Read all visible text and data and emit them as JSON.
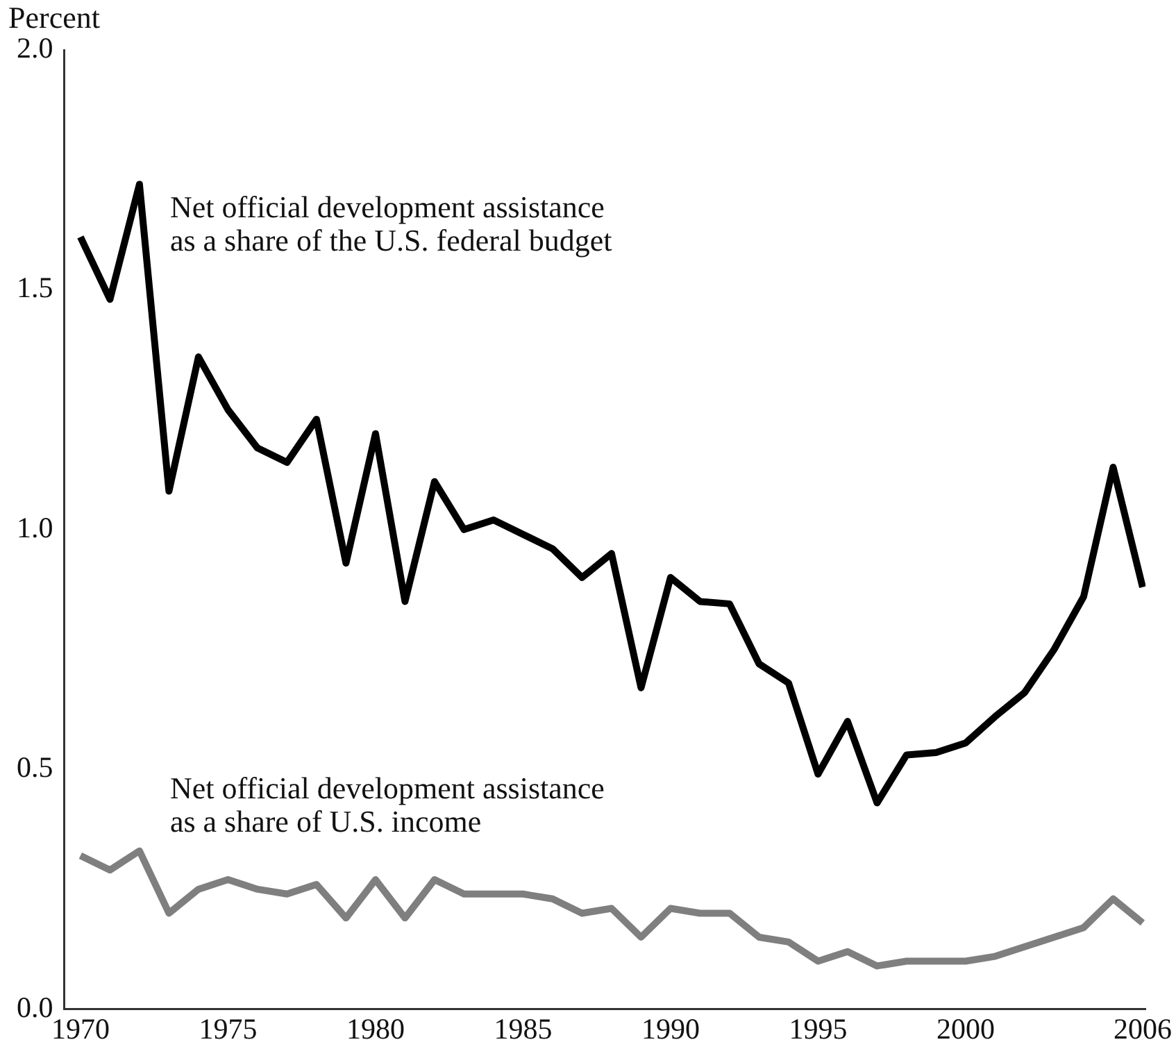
{
  "chart_data": {
    "type": "line",
    "ylabel": "Percent",
    "x": [
      1970,
      1971,
      1972,
      1973,
      1974,
      1975,
      1976,
      1977,
      1978,
      1979,
      1980,
      1981,
      1982,
      1983,
      1984,
      1985,
      1986,
      1987,
      1988,
      1989,
      1990,
      1991,
      1992,
      1993,
      1994,
      1995,
      1996,
      1997,
      1998,
      1999,
      2000,
      2001,
      2002,
      2003,
      2004,
      2005,
      2006
    ],
    "series": [
      {
        "name": "Net official development assistance\nas a share of the U.S. federal budget",
        "color": "#000000",
        "values": [
          1.61,
          1.48,
          1.72,
          1.08,
          1.36,
          1.25,
          1.17,
          1.14,
          1.23,
          0.93,
          1.2,
          0.85,
          1.1,
          1.0,
          1.02,
          0.99,
          0.96,
          0.9,
          0.95,
          0.67,
          0.9,
          0.85,
          0.845,
          0.72,
          0.68,
          0.49,
          0.6,
          0.43,
          0.53,
          0.535,
          0.555,
          0.61,
          0.66,
          0.75,
          0.86,
          1.13,
          0.88
        ]
      },
      {
        "name": "Net official development assistance\nas a share of U.S. income",
        "color": "#7f7f7f",
        "values": [
          0.32,
          0.29,
          0.33,
          0.2,
          0.25,
          0.27,
          0.25,
          0.24,
          0.26,
          0.19,
          0.27,
          0.19,
          0.27,
          0.24,
          0.24,
          0.24,
          0.23,
          0.2,
          0.21,
          0.15,
          0.21,
          0.2,
          0.2,
          0.15,
          0.14,
          0.1,
          0.12,
          0.09,
          0.1,
          0.1,
          0.1,
          0.11,
          0.13,
          0.15,
          0.17,
          0.23,
          0.18
        ]
      }
    ],
    "xlim": [
      1969.45,
      2006.1
    ],
    "xticks": [
      1970,
      1975,
      1980,
      1985,
      1990,
      1995,
      2000,
      2006
    ],
    "ylim": [
      0,
      2
    ],
    "yticks": [
      {
        "value": 0,
        "label": "0.0"
      },
      {
        "value": 0.5,
        "label": "0.5"
      },
      {
        "value": 1,
        "label": "1.0"
      },
      {
        "value": 1.5,
        "label": "1.5"
      },
      {
        "value": 2,
        "label": "2.0"
      }
    ],
    "grid": false,
    "legend": false,
    "marker": "none",
    "line_style": "solid"
  }
}
